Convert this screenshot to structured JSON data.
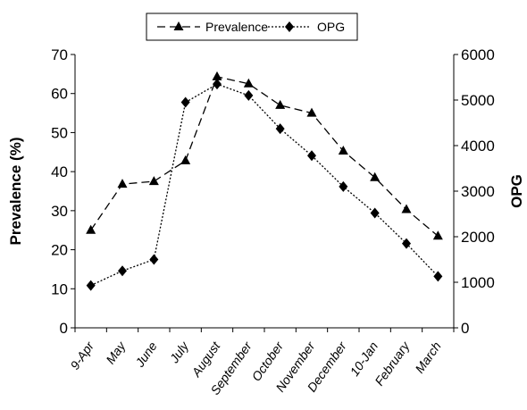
{
  "chart_data": {
    "type": "line",
    "categories": [
      "9-Apr",
      "May",
      "June",
      "July",
      "August",
      "September",
      "October",
      "November",
      "December",
      "10-Jan",
      "February",
      "March"
    ],
    "series": [
      {
        "name": "Prevalence",
        "axis": "left",
        "marker": "triangle",
        "line_style": "dashed",
        "values": [
          25,
          36.8,
          37.5,
          42.8,
          64.3,
          62.5,
          57,
          55,
          45.3,
          38.5,
          30.3,
          23.5
        ]
      },
      {
        "name": "OPG",
        "axis": "right",
        "marker": "diamond",
        "line_style": "dotted",
        "values": [
          930,
          1250,
          1500,
          4950,
          5350,
          5100,
          4370,
          3780,
          3100,
          2520,
          1850,
          1130
        ]
      }
    ],
    "y_left": {
      "label": "Prevalence (%)",
      "range": [
        0,
        70
      ],
      "ticks": [
        "0",
        "10",
        "20",
        "30",
        "40",
        "50",
        "60",
        "70"
      ]
    },
    "y_right": {
      "label": "OPG",
      "range": [
        0,
        6000
      ],
      "ticks": [
        "0",
        "1000",
        "2000",
        "3000",
        "4000",
        "5000",
        "6000"
      ]
    },
    "xlabel": "",
    "legend_position": "top-center",
    "grid": false,
    "colors": {
      "line": "#000000",
      "background": "#ffffff"
    }
  }
}
